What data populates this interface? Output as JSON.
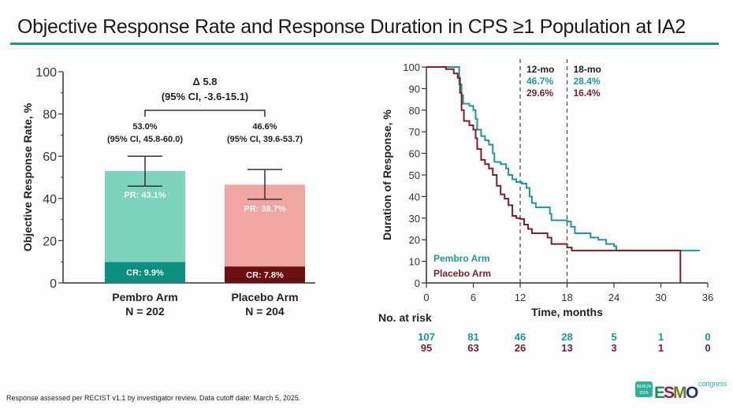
{
  "title": "Objective Response Rate and Response Duration in CPS ≥1 Population at IA2",
  "footnote": "Response assessed per RECIST v1.1 by investigator review. Data cutoff date: March 5, 2025.",
  "logo": {
    "city": "BERLIN",
    "year": "2025",
    "brand": "ESMO",
    "suffix": "congress"
  },
  "colors": {
    "accent": "#1b9a8c",
    "pembro_pr": "#7dd3bb",
    "pembro_cr": "#0d8f80",
    "placebo_pr": "#f0a7a4",
    "placebo_cr": "#6b0f12",
    "pembro_line": "#1b9a94",
    "placebo_line": "#7a1f2b"
  },
  "chart_data": [
    {
      "type": "bar",
      "stacked": true,
      "ylabel": "Objective Response Rate, %",
      "ylim": [
        0,
        100
      ],
      "yticks": [
        0,
        20,
        40,
        60,
        80,
        100
      ],
      "categories": [
        "Pembro Arm",
        "Placebo Arm"
      ],
      "category_n": [
        "N = 202",
        "N = 204"
      ],
      "series": [
        {
          "name": "CR",
          "values": [
            9.9,
            7.8
          ],
          "labels": [
            "CR: 9.9%",
            "CR: 7.8%"
          ]
        },
        {
          "name": "PR",
          "values": [
            43.1,
            38.7
          ],
          "labels": [
            "PR: 43.1%",
            "PR: 38.7%"
          ]
        }
      ],
      "totals": [
        53.0,
        46.6
      ],
      "ci": [
        [
          45.8,
          60.0
        ],
        [
          39.6,
          53.7
        ]
      ],
      "total_labels": [
        "53.0%",
        "46.6%"
      ],
      "ci_labels": [
        "(95% CI, 45.8-60.0)",
        "(95% CI, 39.6-53.7)"
      ],
      "delta_label": "Δ 5.8",
      "delta_ci_label": "(95% CI, -3.6-15.1)"
    },
    {
      "type": "line",
      "step": true,
      "ylabel": "Duration of Response, %",
      "xlabel": "Time, months",
      "xlim": [
        0,
        36
      ],
      "ylim": [
        0,
        100
      ],
      "xticks": [
        0,
        6,
        12,
        18,
        24,
        30,
        36
      ],
      "yticks": [
        0,
        10,
        20,
        30,
        40,
        50,
        60,
        70,
        80,
        90,
        100
      ],
      "legend_position": "bottom-left",
      "reference_lines": [
        {
          "x": 12,
          "label": "12-mo",
          "values": [
            "46.7%",
            "29.6%"
          ]
        },
        {
          "x": 18,
          "label": "18-mo",
          "values": [
            "28.4%",
            "16.4%"
          ]
        }
      ],
      "series": [
        {
          "name": "Pembro Arm",
          "x": [
            0,
            4,
            4.2,
            4.5,
            4.7,
            5.5,
            6,
            6.3,
            6.5,
            7,
            7.5,
            8,
            8.5,
            8.7,
            9.5,
            10.2,
            10.5,
            11,
            11.5,
            12.2,
            12.8,
            13.2,
            13.5,
            14,
            15.8,
            16,
            18,
            18.5,
            19,
            21,
            22,
            23,
            24,
            24.3,
            35
          ],
          "y": [
            100,
            100,
            92,
            87,
            83,
            82,
            80,
            76,
            71,
            68,
            66,
            64,
            60,
            56,
            55,
            53,
            50,
            48,
            46.7,
            46,
            44,
            40,
            37,
            35,
            32,
            29,
            28.4,
            26,
            23,
            21,
            20,
            18,
            17,
            15,
            15
          ],
          "at_risk": [
            107,
            81,
            46,
            28,
            5,
            1,
            0
          ]
        },
        {
          "name": "Placebo Arm",
          "x": [
            0,
            2.5,
            3.5,
            4,
            4.3,
            4.5,
            4.8,
            5.5,
            6,
            6.3,
            6.5,
            7,
            7.5,
            8,
            8.5,
            9,
            9.5,
            10,
            10.5,
            11,
            11.5,
            12,
            12.5,
            13,
            13.5,
            15.5,
            16,
            18,
            18.6,
            32.5,
            32.5
          ],
          "y": [
            100,
            99,
            97,
            95,
            88,
            80,
            75,
            73,
            71,
            67,
            62,
            57,
            55,
            53,
            50,
            45,
            41,
            39,
            36,
            31,
            30,
            29.6,
            27,
            25,
            23,
            21,
            18,
            16.4,
            15,
            15,
            0
          ],
          "at_risk": [
            95,
            63,
            26,
            13,
            3,
            1,
            0
          ]
        }
      ],
      "at_risk_label": "No. at risk"
    }
  ]
}
